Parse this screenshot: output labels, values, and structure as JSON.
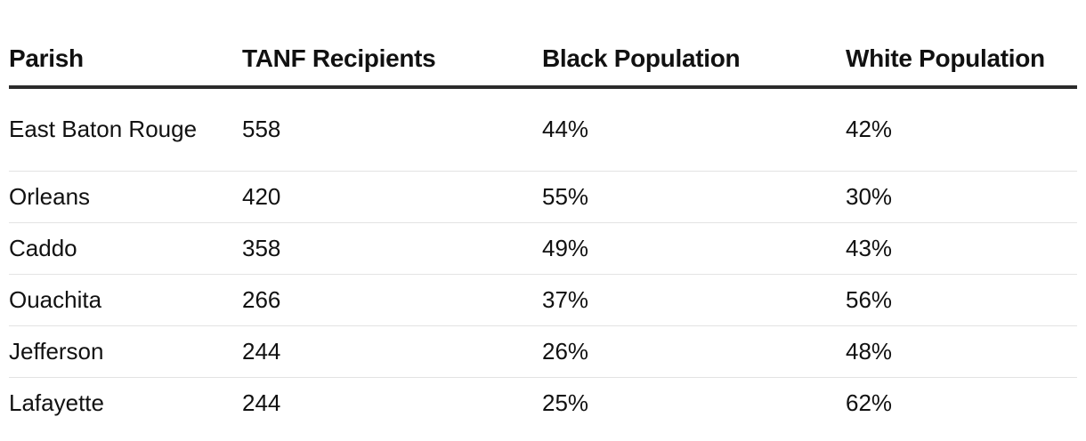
{
  "table": {
    "headers": [
      "Parish",
      "TANF Recipients",
      "Black Population",
      "White Population"
    ],
    "rows": [
      {
        "parish": "East Baton Rouge",
        "tanf": "558",
        "black": "44%",
        "white": "42%"
      },
      {
        "parish": "Orleans",
        "tanf": "420",
        "black": "55%",
        "white": "30%"
      },
      {
        "parish": "Caddo",
        "tanf": "358",
        "black": "49%",
        "white": "43%"
      },
      {
        "parish": "Ouachita",
        "tanf": "266",
        "black": "37%",
        "white": "56%"
      },
      {
        "parish": "Jefferson",
        "tanf": "244",
        "black": "26%",
        "white": "48%"
      },
      {
        "parish": "Lafayette",
        "tanf": "244",
        "black": "25%",
        "white": "62%"
      }
    ]
  }
}
